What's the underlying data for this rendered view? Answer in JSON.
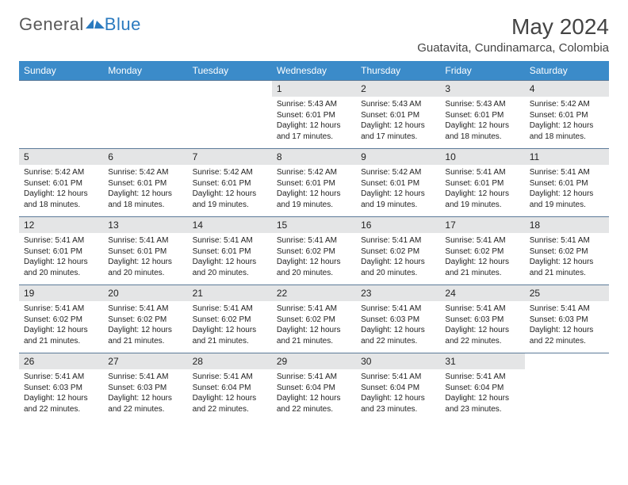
{
  "brand": {
    "part1": "General",
    "part2": "Blue"
  },
  "title": "May 2024",
  "location": "Guatavita, Cundinamarca, Colombia",
  "colors": {
    "header_bg": "#3b8bc9",
    "header_text": "#ffffff",
    "daynum_bg": "#e4e5e6",
    "row_border": "#5b7a99",
    "brand_gray": "#5a5a5a",
    "brand_blue": "#2a7abf"
  },
  "weekdays": [
    "Sunday",
    "Monday",
    "Tuesday",
    "Wednesday",
    "Thursday",
    "Friday",
    "Saturday"
  ],
  "weeks": [
    [
      null,
      null,
      null,
      {
        "n": "1",
        "sr": "5:43 AM",
        "ss": "6:01 PM",
        "dl": "12 hours and 17 minutes."
      },
      {
        "n": "2",
        "sr": "5:43 AM",
        "ss": "6:01 PM",
        "dl": "12 hours and 17 minutes."
      },
      {
        "n": "3",
        "sr": "5:43 AM",
        "ss": "6:01 PM",
        "dl": "12 hours and 18 minutes."
      },
      {
        "n": "4",
        "sr": "5:42 AM",
        "ss": "6:01 PM",
        "dl": "12 hours and 18 minutes."
      }
    ],
    [
      {
        "n": "5",
        "sr": "5:42 AM",
        "ss": "6:01 PM",
        "dl": "12 hours and 18 minutes."
      },
      {
        "n": "6",
        "sr": "5:42 AM",
        "ss": "6:01 PM",
        "dl": "12 hours and 18 minutes."
      },
      {
        "n": "7",
        "sr": "5:42 AM",
        "ss": "6:01 PM",
        "dl": "12 hours and 19 minutes."
      },
      {
        "n": "8",
        "sr": "5:42 AM",
        "ss": "6:01 PM",
        "dl": "12 hours and 19 minutes."
      },
      {
        "n": "9",
        "sr": "5:42 AM",
        "ss": "6:01 PM",
        "dl": "12 hours and 19 minutes."
      },
      {
        "n": "10",
        "sr": "5:41 AM",
        "ss": "6:01 PM",
        "dl": "12 hours and 19 minutes."
      },
      {
        "n": "11",
        "sr": "5:41 AM",
        "ss": "6:01 PM",
        "dl": "12 hours and 19 minutes."
      }
    ],
    [
      {
        "n": "12",
        "sr": "5:41 AM",
        "ss": "6:01 PM",
        "dl": "12 hours and 20 minutes."
      },
      {
        "n": "13",
        "sr": "5:41 AM",
        "ss": "6:01 PM",
        "dl": "12 hours and 20 minutes."
      },
      {
        "n": "14",
        "sr": "5:41 AM",
        "ss": "6:01 PM",
        "dl": "12 hours and 20 minutes."
      },
      {
        "n": "15",
        "sr": "5:41 AM",
        "ss": "6:02 PM",
        "dl": "12 hours and 20 minutes."
      },
      {
        "n": "16",
        "sr": "5:41 AM",
        "ss": "6:02 PM",
        "dl": "12 hours and 20 minutes."
      },
      {
        "n": "17",
        "sr": "5:41 AM",
        "ss": "6:02 PM",
        "dl": "12 hours and 21 minutes."
      },
      {
        "n": "18",
        "sr": "5:41 AM",
        "ss": "6:02 PM",
        "dl": "12 hours and 21 minutes."
      }
    ],
    [
      {
        "n": "19",
        "sr": "5:41 AM",
        "ss": "6:02 PM",
        "dl": "12 hours and 21 minutes."
      },
      {
        "n": "20",
        "sr": "5:41 AM",
        "ss": "6:02 PM",
        "dl": "12 hours and 21 minutes."
      },
      {
        "n": "21",
        "sr": "5:41 AM",
        "ss": "6:02 PM",
        "dl": "12 hours and 21 minutes."
      },
      {
        "n": "22",
        "sr": "5:41 AM",
        "ss": "6:02 PM",
        "dl": "12 hours and 21 minutes."
      },
      {
        "n": "23",
        "sr": "5:41 AM",
        "ss": "6:03 PM",
        "dl": "12 hours and 22 minutes."
      },
      {
        "n": "24",
        "sr": "5:41 AM",
        "ss": "6:03 PM",
        "dl": "12 hours and 22 minutes."
      },
      {
        "n": "25",
        "sr": "5:41 AM",
        "ss": "6:03 PM",
        "dl": "12 hours and 22 minutes."
      }
    ],
    [
      {
        "n": "26",
        "sr": "5:41 AM",
        "ss": "6:03 PM",
        "dl": "12 hours and 22 minutes."
      },
      {
        "n": "27",
        "sr": "5:41 AM",
        "ss": "6:03 PM",
        "dl": "12 hours and 22 minutes."
      },
      {
        "n": "28",
        "sr": "5:41 AM",
        "ss": "6:04 PM",
        "dl": "12 hours and 22 minutes."
      },
      {
        "n": "29",
        "sr": "5:41 AM",
        "ss": "6:04 PM",
        "dl": "12 hours and 22 minutes."
      },
      {
        "n": "30",
        "sr": "5:41 AM",
        "ss": "6:04 PM",
        "dl": "12 hours and 23 minutes."
      },
      {
        "n": "31",
        "sr": "5:41 AM",
        "ss": "6:04 PM",
        "dl": "12 hours and 23 minutes."
      },
      null
    ]
  ]
}
